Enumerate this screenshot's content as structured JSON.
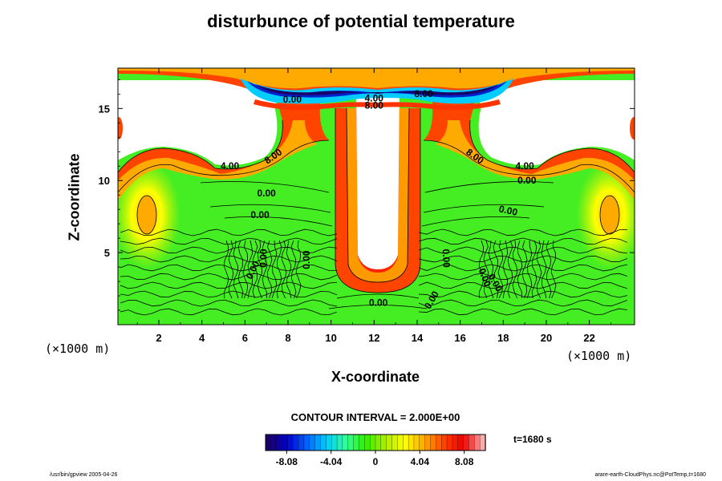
{
  "chart_data": {
    "type": "heatmap",
    "title": "disturbunce of potential temperature",
    "xlabel": "X-coordinate",
    "ylabel": "Z-coordinate",
    "x_unit": "(×1000 m)",
    "z_unit": "(×1000 m)",
    "xlim": [
      0.1,
      24.1
    ],
    "ylim": [
      0,
      17.8
    ],
    "x_ticks": [
      2,
      4,
      6,
      8,
      10,
      12,
      14,
      16,
      18,
      20,
      22
    ],
    "y_ticks": [
      5,
      10,
      15
    ],
    "contour_interval_label": "CONTOUR INTERVAL = 2.000E+00",
    "colorbar": {
      "min": -10,
      "max": 10,
      "ticks": [
        -8.08,
        -4.04,
        0,
        4.04,
        8.08
      ],
      "tick_labels": [
        "-8.08",
        "-4.04",
        "0",
        "4.04",
        "8.08"
      ],
      "colors": [
        "#1a0066",
        "#0000cc",
        "#0066ff",
        "#00ccff",
        "#33ff99",
        "#33ee00",
        "#aaee00",
        "#ffff00",
        "#ffaa00",
        "#ff4400",
        "#ee0000",
        "#ffaaaa"
      ]
    },
    "contour_labels": [
      {
        "text": "0.00",
        "x": 8.2,
        "z": 15.4,
        "angle": 0
      },
      {
        "text": "4.00",
        "x": 12.0,
        "z": 15.5,
        "angle": 0
      },
      {
        "text": "8.00",
        "x": 12.0,
        "z": 15.0,
        "angle": 0
      },
      {
        "text": "8.00",
        "x": 14.3,
        "z": 15.8,
        "angle": 0
      },
      {
        "text": "4.00",
        "x": 5.3,
        "z": 10.8,
        "angle": 0
      },
      {
        "text": "8.00",
        "x": 7.4,
        "z": 11.5,
        "angle": -35
      },
      {
        "text": "8.00",
        "x": 16.6,
        "z": 11.5,
        "angle": 35
      },
      {
        "text": "4.00",
        "x": 19.0,
        "z": 10.8,
        "angle": 0
      },
      {
        "text": "0.00",
        "x": 19.1,
        "z": 9.8,
        "angle": 0
      },
      {
        "text": "0.00",
        "x": 7.0,
        "z": 8.9,
        "angle": 0
      },
      {
        "text": "0.00",
        "x": 6.7,
        "z": 7.4,
        "angle": 0
      },
      {
        "text": "0.00",
        "x": 18.2,
        "z": 7.7,
        "angle": 12
      },
      {
        "text": "0.00",
        "x": 6.5,
        "z": 3.7,
        "angle": -65
      },
      {
        "text": "0.00",
        "x": 7.0,
        "z": 4.6,
        "angle": -88
      },
      {
        "text": "0.00",
        "x": 9.0,
        "z": 4.5,
        "angle": -90
      },
      {
        "text": "0.00",
        "x": 15.2,
        "z": 4.6,
        "angle": 88
      },
      {
        "text": "0.00",
        "x": 17.0,
        "z": 3.2,
        "angle": 70
      },
      {
        "text": "0.00",
        "x": 17.5,
        "z": 2.8,
        "angle": 60
      },
      {
        "text": "0.00",
        "x": 12.2,
        "z": 1.3,
        "angle": 0
      },
      {
        "text": "0.00",
        "x": 14.8,
        "z": 1.6,
        "angle": -60
      }
    ]
  },
  "time_label": "t=1680 s",
  "footer_left": "/usr/bin/gpview 2005-04-26",
  "footer_right": "arare-earth-CloudPhys.nc@PotTemp,t=1680"
}
